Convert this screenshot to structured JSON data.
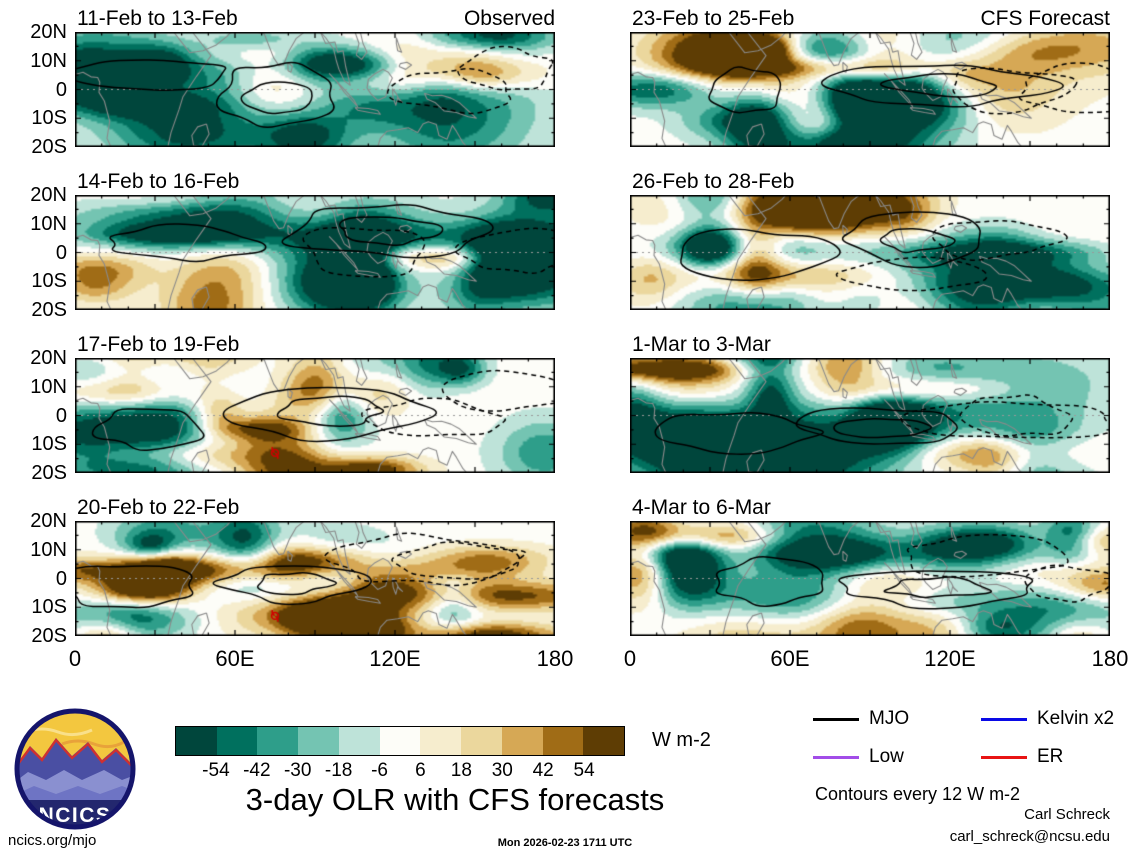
{
  "figure": {
    "title": "3-day OLR with CFS forecasts",
    "units_label": "W m-2",
    "contour_note": "Contours every 12 W m-2",
    "credit": "Carl Schreck",
    "email": "carl_schreck@ncsu.edu",
    "site": "ncics.org/mjo",
    "timestamp": "Mon 2026-02-23 1711 UTC",
    "logo_text": "NCICS"
  },
  "columns": [
    {
      "tag": "Observed",
      "panels": [
        {
          "title": "11-Feb to 13-Feb"
        },
        {
          "title": "14-Feb to 16-Feb"
        },
        {
          "title": "17-Feb to 19-Feb",
          "cyclone": true
        },
        {
          "title": "20-Feb to 22-Feb",
          "cyclone": true
        }
      ]
    },
    {
      "tag": "CFS Forecast",
      "panels": [
        {
          "title": "23-Feb to 25-Feb"
        },
        {
          "title": "26-Feb to 28-Feb"
        },
        {
          "title": "1-Mar to 3-Mar"
        },
        {
          "title": "4-Mar to 6-Mar"
        }
      ]
    }
  ],
  "axes": {
    "x_ticks": [
      "0",
      "60E",
      "120E",
      "180"
    ],
    "y_ticks": [
      "20N",
      "10N",
      "0",
      "10S",
      "20S"
    ]
  },
  "colorbar": {
    "tick_labels": [
      "-54",
      "-42",
      "-30",
      "-18",
      "-6",
      "6",
      "18",
      "30",
      "42",
      "54"
    ],
    "colors": [
      "#00463C",
      "#00705E",
      "#2E9E8A",
      "#74C4B2",
      "#BEE3D9",
      "#FDFDF8",
      "#F6EDCE",
      "#EBD79D",
      "#D6A855",
      "#A06C16",
      "#5E3D04"
    ],
    "units": "W m-2"
  },
  "legend": {
    "items": [
      {
        "label": "MJO",
        "color": "#000000"
      },
      {
        "label": "Kelvin x2",
        "color": "#0A0AE6"
      },
      {
        "label": "Low",
        "color": "#A24DE8"
      },
      {
        "label": "ER",
        "color": "#E81414"
      }
    ]
  },
  "chart_data": {
    "type": "heatmap",
    "title": "3-day OLR with CFS forecasts",
    "variable": "OLR anomaly maps (filled shading) with wave-filtered contours",
    "units": "W m-2",
    "columns": [
      {
        "label": "Observed",
        "panel_dates": [
          "11-Feb to 13-Feb",
          "14-Feb to 16-Feb",
          "17-Feb to 19-Feb",
          "20-Feb to 22-Feb"
        ]
      },
      {
        "label": "CFS Forecast",
        "panel_dates": [
          "23-Feb to 25-Feb",
          "26-Feb to 28-Feb",
          "1-Mar to 3-Mar",
          "4-Mar to 6-Mar"
        ]
      }
    ],
    "x_axis": {
      "ticks": [
        "0",
        "60E",
        "120E",
        "180"
      ],
      "range_deg_lon": [
        0,
        180
      ]
    },
    "y_axis": {
      "ticks": [
        "20N",
        "10N",
        "0",
        "10S",
        "20S"
      ],
      "range_deg_lat": [
        -20,
        20
      ]
    },
    "colorbar": {
      "levels": [
        -54,
        -42,
        -30,
        -18,
        -6,
        6,
        18,
        30,
        42,
        54
      ],
      "units": "W m-2"
    },
    "contour_interval_note": "Contours every 12 W m-2",
    "legend_entries": [
      "MJO",
      "Kelvin x2",
      "Low",
      "ER"
    ],
    "annotations": "Red tropical-cyclone symbols near 75E, 13S in the 17-Feb to 19-Feb and 20-Feb to 22-Feb observed panels"
  }
}
